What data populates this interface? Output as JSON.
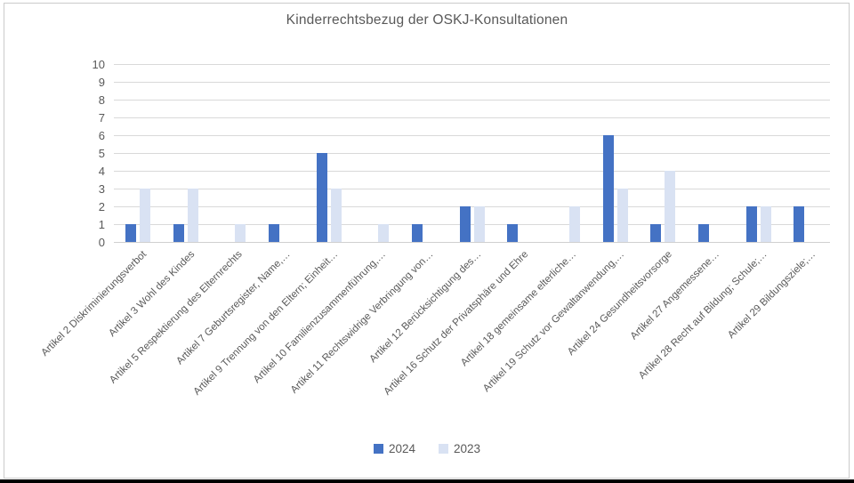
{
  "chart_data": {
    "type": "bar",
    "title": "Kinderrechtsbezug der OSKJ-Konsultationen",
    "categories": [
      "Artikel 2 Diskriminierungsverbot",
      "Artikel 3 Wohl des Kindes",
      "Artikel 5 Respektierung des Elternrechts",
      "Artikel 7 Geburtsregister, Name,…",
      "Artikel 9 Trennung von den Eltern; Einheit…",
      "Artikel 10 Familienzusammenführung,…",
      "Artikel 11 Rechtswidrige Verbringung von…",
      "Artikel 12 Berücksichtigung des…",
      "Artikel 16 Schutz der Privatsphäre und Ehre",
      "Artikel 18 gemeinsame elterliche…",
      "Artikel 19 Schutz vor Gewaltanwendung,…",
      "Artikel 24 Gesundheitsvorsorge",
      "Artikel 27 Angemessene…",
      "Artikel 28 Recht auf Bildung; Schule;…",
      "Artikel 29 Bildungsziele;…"
    ],
    "series": [
      {
        "name": "2024",
        "color": "#4472C4",
        "values": [
          1,
          1,
          0,
          1,
          5,
          0,
          1,
          2,
          1,
          0,
          6,
          1,
          1,
          2,
          2
        ]
      },
      {
        "name": "2023",
        "color": "#D9E2F3",
        "values": [
          3,
          3,
          1,
          0,
          3,
          1,
          0,
          2,
          0,
          2,
          3,
          4,
          0,
          2,
          0
        ]
      }
    ],
    "ylim": [
      0,
      10
    ],
    "ytick_step": 1,
    "ytick_labels": [
      "0",
      "1",
      "2",
      "3",
      "4",
      "5",
      "6",
      "7",
      "8",
      "9",
      "10"
    ],
    "grid": true,
    "legend_position": "bottom",
    "colors": {
      "text": "#595959",
      "gridline": "#D9D9D9",
      "axis": "#D0D0D0"
    }
  }
}
